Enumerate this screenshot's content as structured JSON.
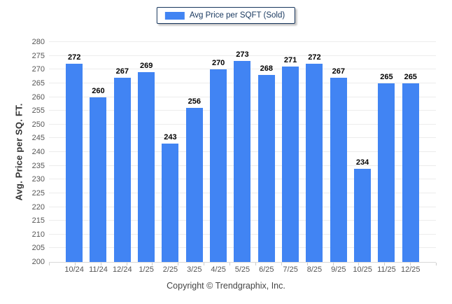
{
  "chart_data": {
    "type": "bar",
    "title": "",
    "legend": "Avg Price per SQFT (Sold)",
    "legend_position": "top-center",
    "categories": [
      "10/24",
      "11/24",
      "12/24",
      "1/25",
      "2/25",
      "3/25",
      "4/25",
      "5/25",
      "6/25",
      "7/25",
      "8/25",
      "9/25",
      "10/25",
      "11/25",
      "12/25"
    ],
    "values": [
      272,
      260,
      267,
      269,
      243,
      256,
      270,
      273,
      268,
      271,
      272,
      267,
      234,
      265,
      265
    ],
    "xlabel": "",
    "ylabel": "Avg. Price per SQ. FT.",
    "ylim": [
      200,
      280
    ],
    "yticks": [
      200,
      205,
      210,
      215,
      220,
      225,
      230,
      235,
      240,
      245,
      250,
      255,
      260,
      265,
      270,
      275,
      280
    ],
    "grid": "horizontal"
  },
  "colors": {
    "bar": "#4184f3",
    "legend_border": "#17365d",
    "grid": "#ececec"
  },
  "footer": {
    "copyright": "Copyright © Trendgraphix, Inc."
  }
}
